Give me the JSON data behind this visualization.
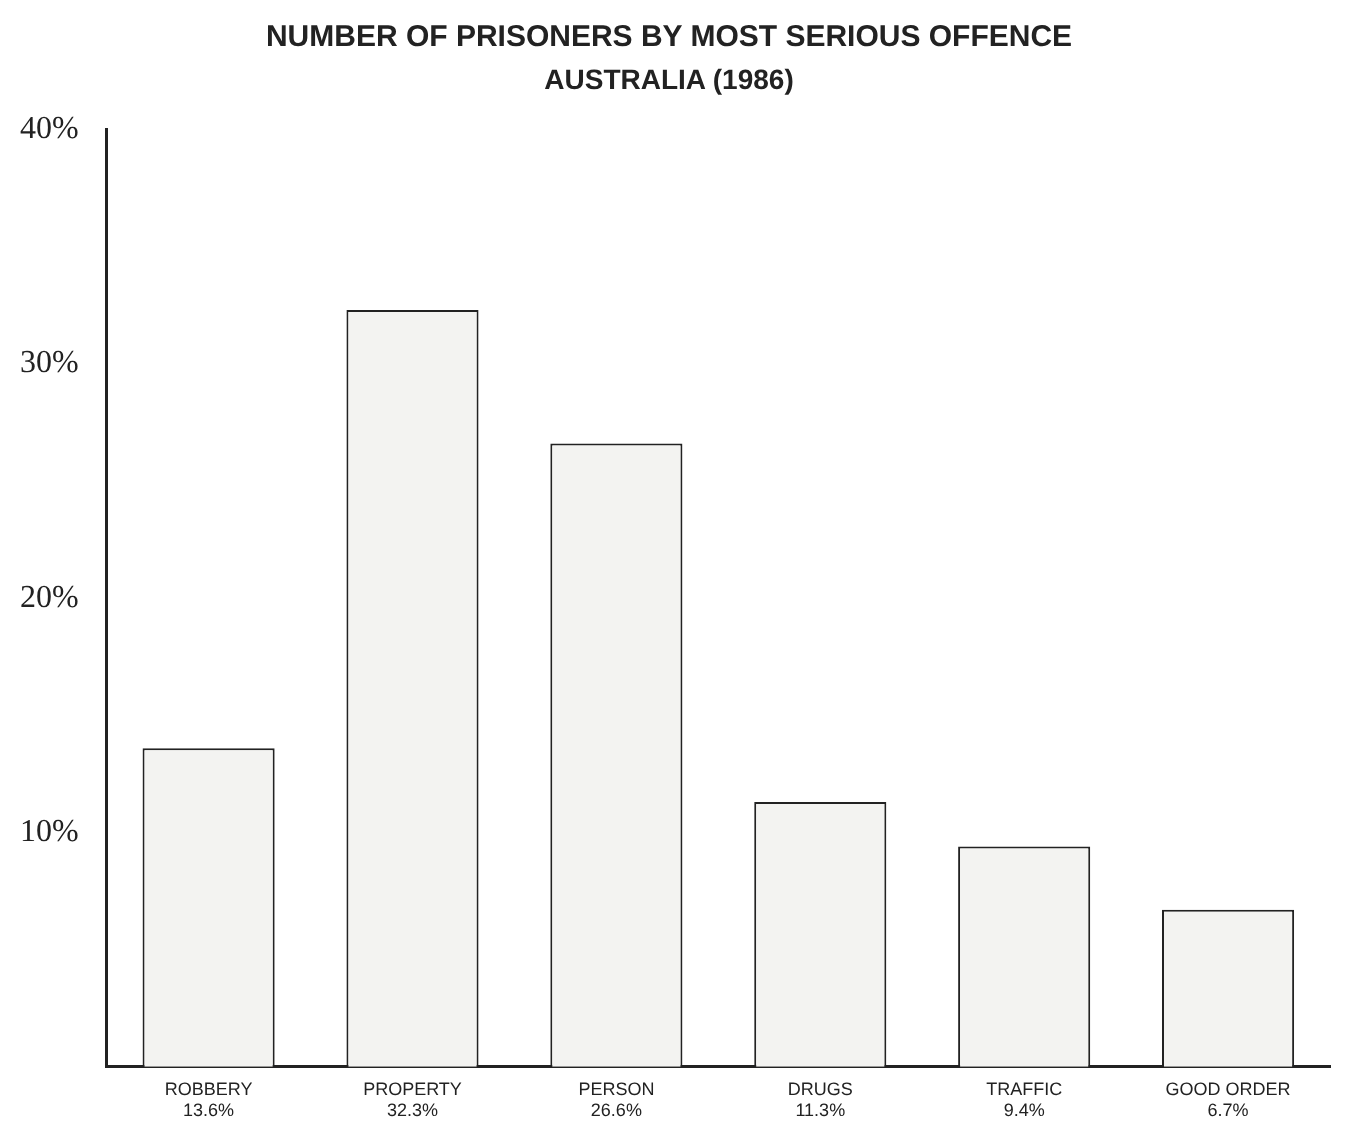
{
  "chart_data": {
    "type": "bar",
    "title": "NUMBER OF PRISONERS BY MOST SERIOUS OFFENCE",
    "subtitle": "AUSTRALIA (1986)",
    "categories": [
      "ROBBERY",
      "PROPERTY",
      "PERSON",
      "DRUGS",
      "TRAFFIC",
      "GOOD ORDER"
    ],
    "values": [
      13.6,
      32.3,
      26.6,
      11.3,
      9.4,
      6.7
    ],
    "value_labels": [
      "13.6%",
      "32.3%",
      "26.6%",
      "11.3%",
      "9.4%",
      "6.7%"
    ],
    "color": "#f3f3f1",
    "ylim": [
      0,
      40
    ],
    "yticks": [
      {
        "value": 10,
        "label": "10%"
      },
      {
        "value": 20,
        "label": "20%"
      },
      {
        "value": 30,
        "label": "30%"
      },
      {
        "value": 40,
        "label": "40%"
      }
    ],
    "grid": false,
    "legend": false
  }
}
